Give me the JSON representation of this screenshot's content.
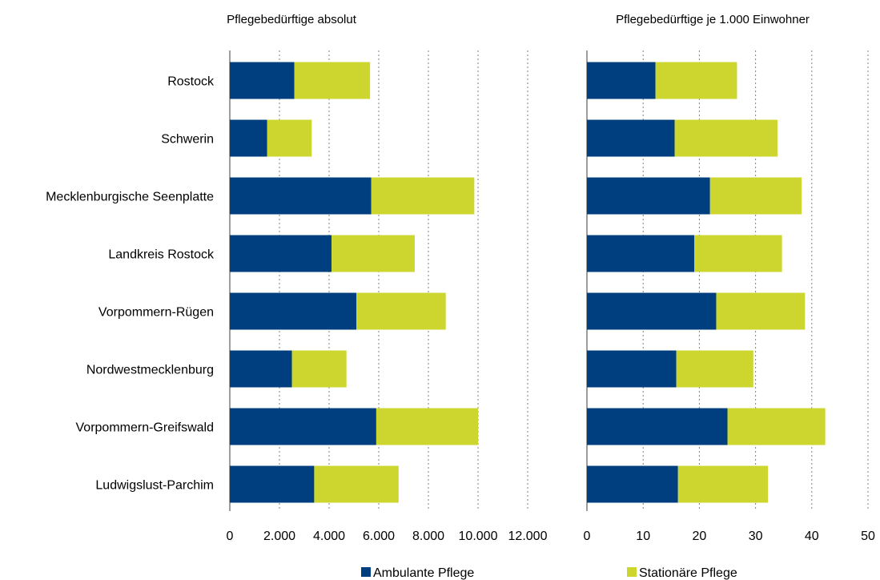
{
  "colors": {
    "ambulant": "#003f7f",
    "stationaer": "#cdd62e",
    "axis": "#7f7f7f",
    "grid": "#808080"
  },
  "chart_data": [
    {
      "type": "bar",
      "orientation": "horizontal",
      "stacked": true,
      "title": "Pflegebedürftige absolut",
      "categories": [
        "Rostock",
        "Schwerin",
        "Mecklenburgische Seenplatte",
        "Landkreis Rostock",
        "Vorpommern-Rügen",
        "Nordwestmecklenburg",
        "Vorpommern-Greifswald",
        "Ludwigslust-Parchim"
      ],
      "series": [
        {
          "name": "Ambulante Pflege",
          "values": [
            2600,
            1500,
            5700,
            4100,
            5100,
            2500,
            5900,
            3400
          ]
        },
        {
          "name": "Stationäre Pflege",
          "values": [
            3050,
            1800,
            4150,
            3350,
            3600,
            2200,
            4100,
            3400
          ]
        }
      ],
      "xlim": [
        0,
        12000
      ],
      "ticks": [
        0,
        2000,
        4000,
        6000,
        8000,
        10000,
        12000
      ],
      "tick_labels": [
        "0",
        "2.000",
        "4.000",
        "6.000",
        "8.000",
        "10.000",
        "12.000"
      ],
      "grid": "vertical dotted"
    },
    {
      "type": "bar",
      "orientation": "horizontal",
      "stacked": true,
      "title": "Pflegebedürftige je 1.000 Einwohner",
      "categories": [
        "Rostock",
        "Schwerin",
        "Mecklenburgische Seenplatte",
        "Landkreis Rostock",
        "Vorpommern-Rügen",
        "Nordwestmecklenburg",
        "Vorpommern-Greifswald",
        "Ludwigslust-Parchim"
      ],
      "series": [
        {
          "name": "Ambulante Pflege",
          "values": [
            12.2,
            15.6,
            21.9,
            19.1,
            23.0,
            15.9,
            25.0,
            16.2
          ]
        },
        {
          "name": "Stationäre Pflege",
          "values": [
            14.5,
            18.3,
            16.3,
            15.6,
            15.8,
            13.7,
            17.4,
            16.0
          ]
        }
      ],
      "xlim": [
        0,
        50
      ],
      "ticks": [
        0,
        10,
        20,
        30,
        40,
        50
      ],
      "tick_labels": [
        "0",
        "10",
        "20",
        "30",
        "40",
        "50"
      ],
      "grid": "vertical dotted"
    }
  ],
  "legend": {
    "position": "bottom",
    "items": [
      "Ambulante Pflege",
      "Stationäre Pflege"
    ]
  }
}
